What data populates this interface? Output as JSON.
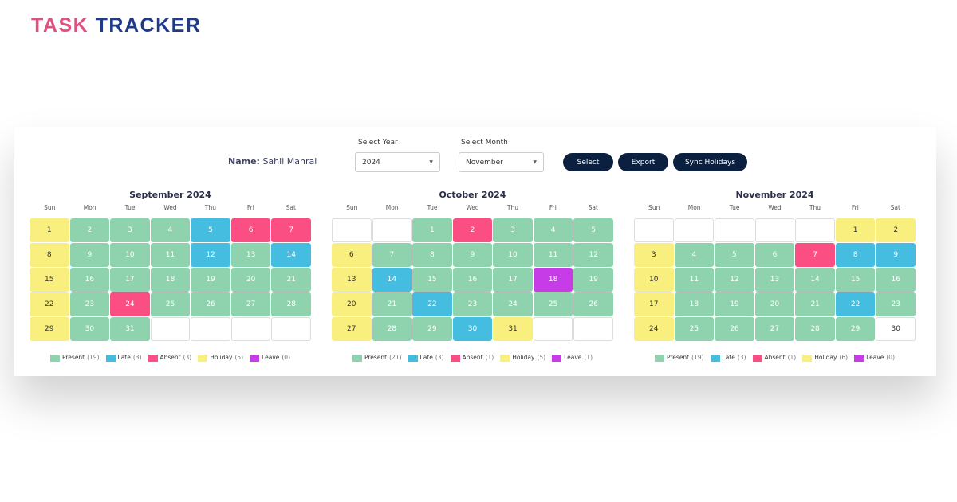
{
  "logo": {
    "part1": "TASK",
    "part2": "TRACKER"
  },
  "controls": {
    "name_label": "Name:",
    "name_value": "Sahil Manral",
    "year_label": "Select Year",
    "year_value": "2024",
    "month_label": "Select Month",
    "month_value": "November",
    "select_btn": "Select",
    "export_btn": "Export",
    "sync_btn": "Sync Holidays"
  },
  "colors": {
    "present": "#8fd3ae",
    "late": "#45bde0",
    "absent": "#fb4f83",
    "holiday": "#f8ef7f",
    "leave": "#c63de8"
  },
  "day_names": [
    "Sun",
    "Mon",
    "Tue",
    "Wed",
    "Thu",
    "Fri",
    "Sat"
  ],
  "legend_labels": {
    "present": "Present",
    "late": "Late",
    "absent": "Absent",
    "holiday": "Holiday",
    "leave": "Leave"
  },
  "calendars": [
    {
      "title": "September 2024",
      "start_weekday": 0,
      "days": 31,
      "status": {
        "1": "holiday",
        "8": "holiday",
        "15": "holiday",
        "22": "holiday",
        "29": "holiday",
        "5": "late",
        "12": "late",
        "14": "late",
        "6": "absent",
        "7": "absent",
        "24": "absent"
      },
      "counts": {
        "present": "(19)",
        "late": "(3)",
        "absent": "(3)",
        "holiday": "(5)",
        "leave": "(0)"
      }
    },
    {
      "title": "October 2024",
      "start_weekday": 2,
      "days": 31,
      "status": {
        "6": "holiday",
        "13": "holiday",
        "20": "holiday",
        "27": "holiday",
        "31": "holiday",
        "14": "late",
        "22": "late",
        "30": "late",
        "2": "absent",
        "18": "leave"
      },
      "counts": {
        "present": "(21)",
        "late": "(3)",
        "absent": "(1)",
        "holiday": "(5)",
        "leave": "(1)"
      }
    },
    {
      "title": "November 2024",
      "start_weekday": 5,
      "days": 30,
      "status": {
        "1": "holiday",
        "2": "holiday",
        "3": "holiday",
        "10": "holiday",
        "17": "holiday",
        "24": "holiday",
        "7": "absent",
        "8": "late",
        "9": "late",
        "22": "late",
        "30": "none"
      },
      "counts": {
        "present": "(19)",
        "late": "(3)",
        "absent": "(1)",
        "holiday": "(6)",
        "leave": "(0)"
      }
    }
  ]
}
